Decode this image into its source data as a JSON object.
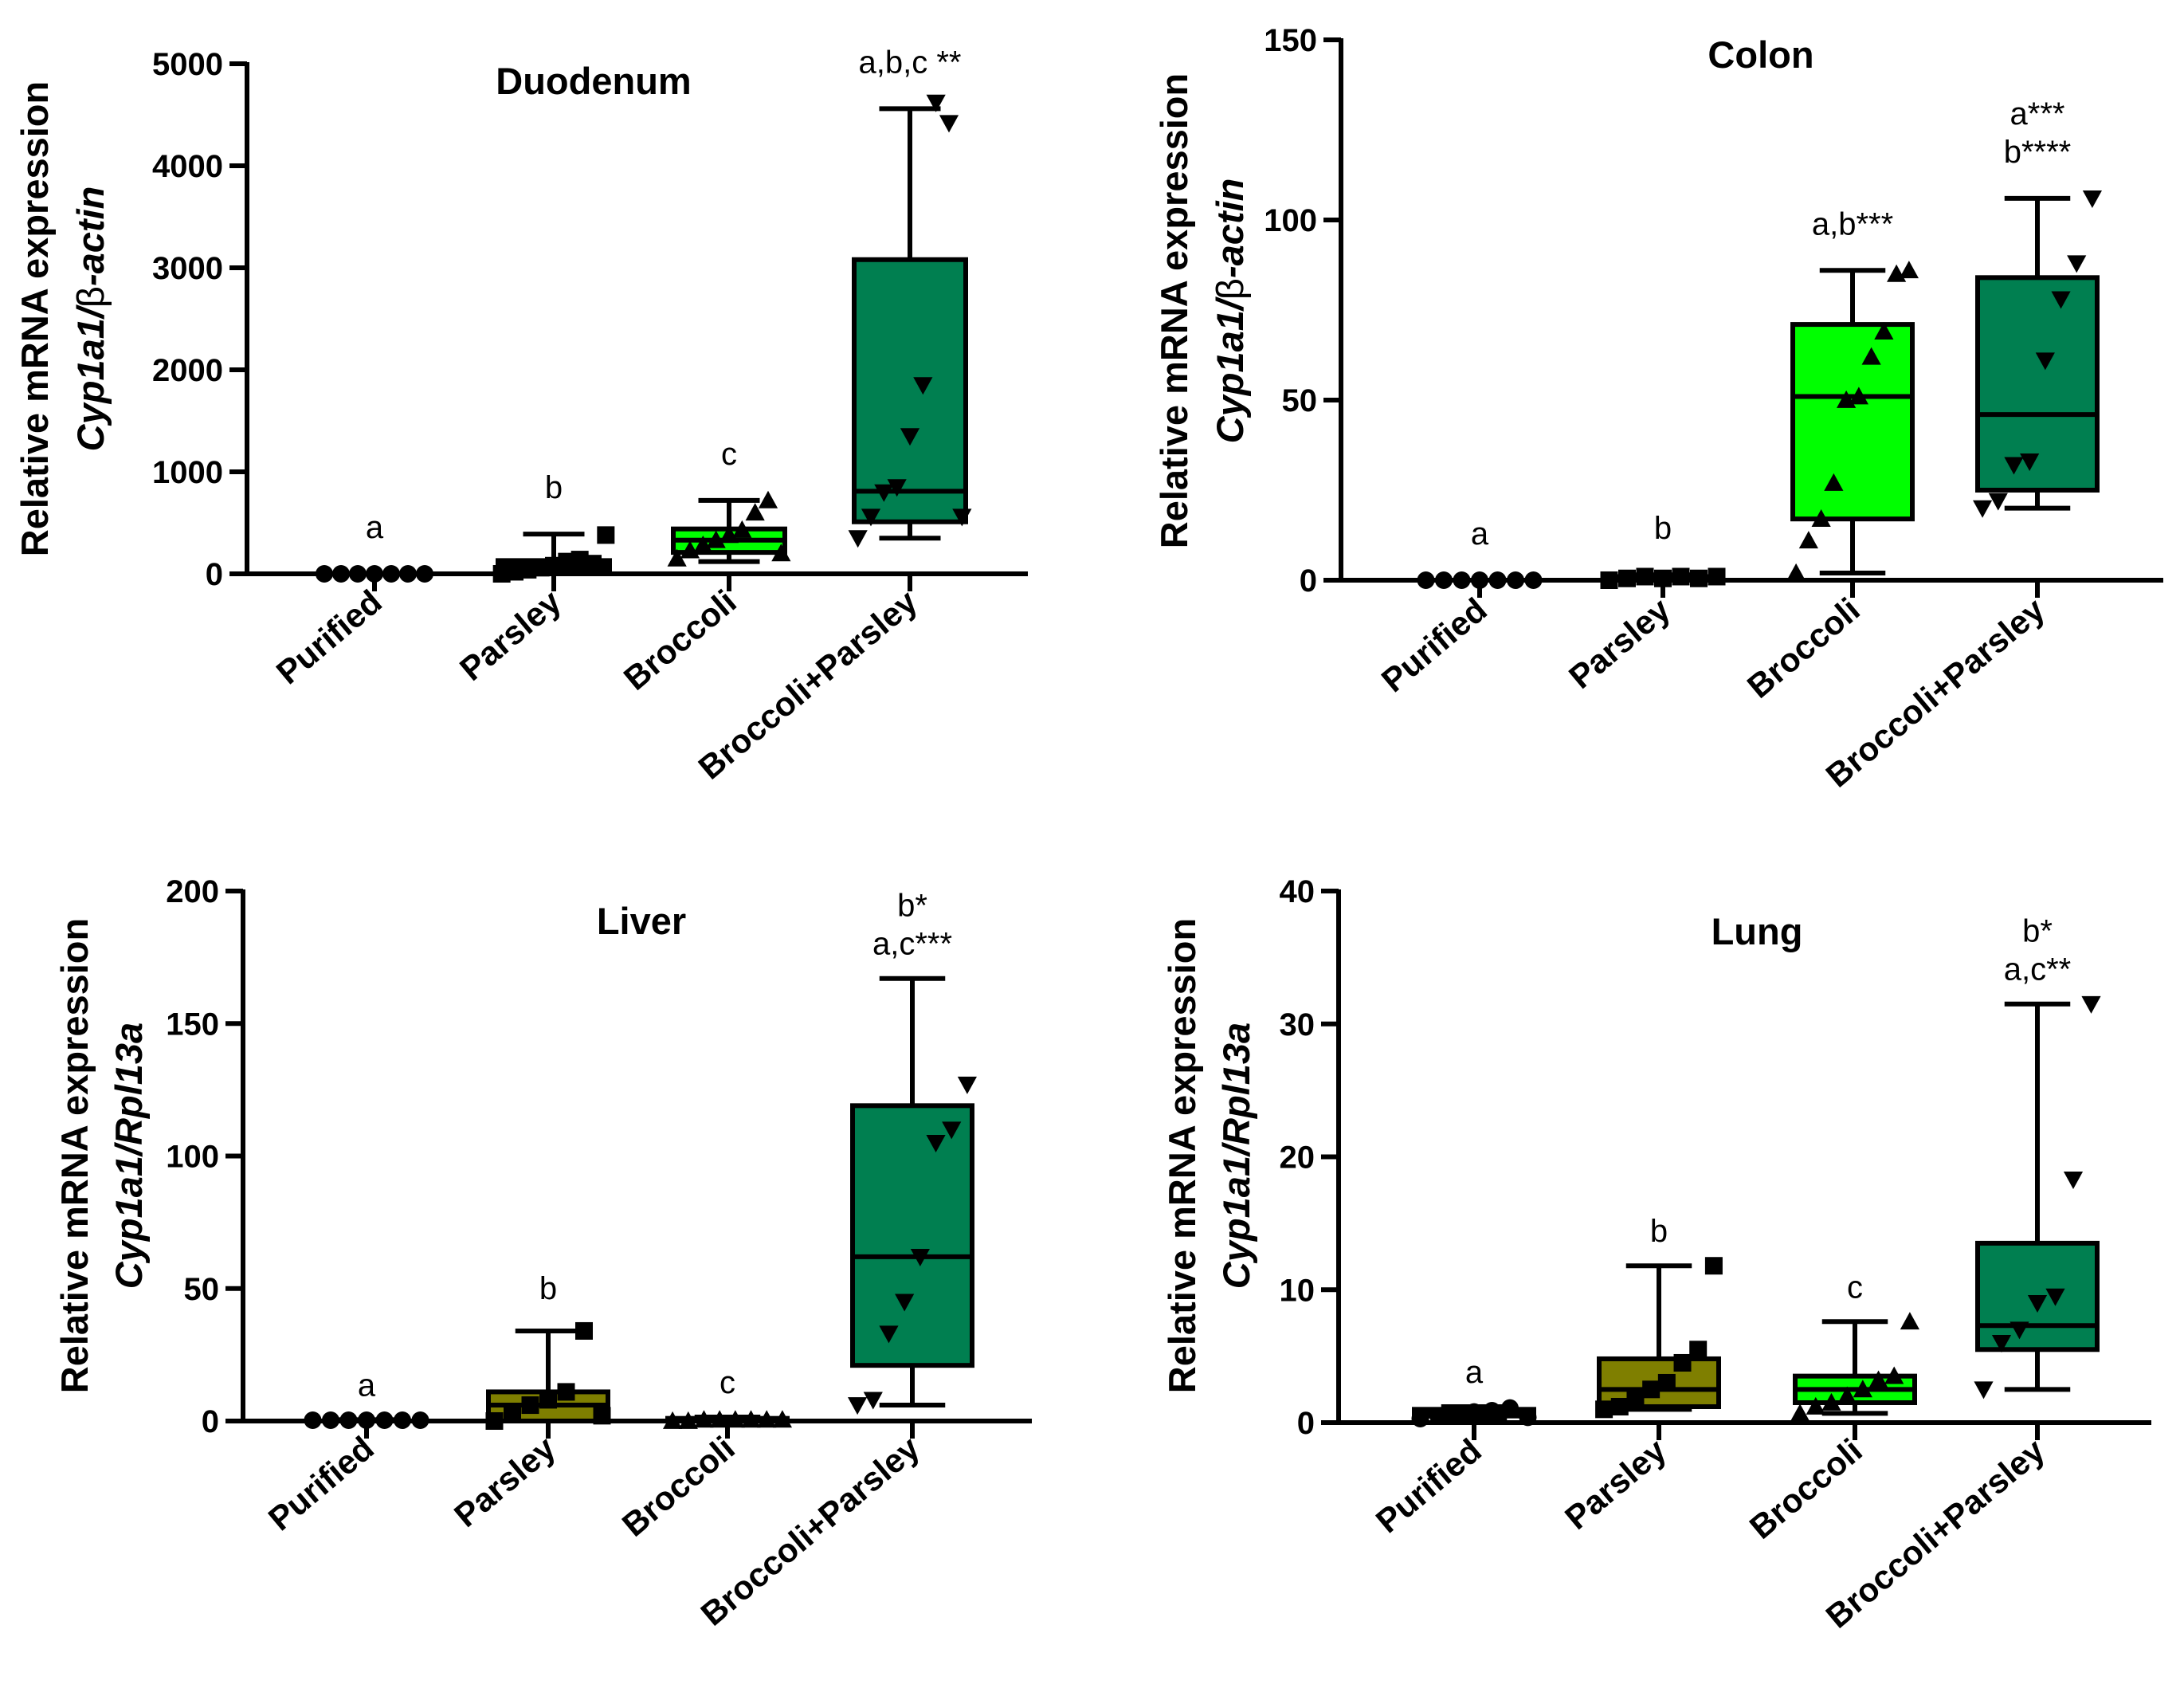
{
  "chart_data": [
    {
      "type": "box",
      "title": "Duodenum",
      "ylabel_line1": "Relative mRNA expression",
      "ylabel_gene": "Cyp1a1/",
      "ylabel_beta": "β",
      "ylabel_ref": "-actin",
      "ylim": [
        0,
        5000
      ],
      "yticks": [
        0,
        1000,
        2000,
        3000,
        4000,
        5000
      ],
      "ytick_labels": [
        "0",
        "1000",
        "2000",
        "3000",
        "4000",
        "5000"
      ],
      "categories": [
        "Purified",
        "Parsley",
        "Broccoli",
        "Broccoli+Parsley"
      ],
      "boxes": [
        {
          "min": 0,
          "q1": 0,
          "median": 0,
          "q3": 0,
          "max": 0,
          "color": "#000000",
          "marker": "circle",
          "label": "a",
          "points": [
            0,
            0,
            0,
            0,
            0,
            0,
            0
          ]
        },
        {
          "min": 0,
          "q1": 10,
          "median": 60,
          "q3": 130,
          "max": 390,
          "color": "#000000",
          "marker": "square",
          "label": "b",
          "points": [
            0,
            20,
            40,
            60,
            80,
            120,
            140,
            100,
            380
          ]
        },
        {
          "min": 120,
          "q1": 210,
          "median": 330,
          "q3": 440,
          "max": 720,
          "color": "#00ff00",
          "marker": "triangle-up",
          "label": "c",
          "points": [
            150,
            230,
            280,
            330,
            380,
            430,
            600,
            720,
            200
          ]
        },
        {
          "min": 350,
          "q1": 510,
          "median": 810,
          "q3": 3080,
          "max": 4560,
          "color": "#007f50",
          "marker": "triangle-down",
          "label": "a,b,c **",
          "points": [
            350,
            560,
            800,
            850,
            1350,
            1850,
            4620,
            4420,
            560
          ]
        }
      ]
    },
    {
      "type": "box",
      "title": "Colon",
      "ylabel_line1": "Relative mRNA expression",
      "ylabel_gene": "Cyp1a1/",
      "ylabel_beta": "β",
      "ylabel_ref": "-actin",
      "ylim": [
        0,
        150
      ],
      "yticks": [
        0,
        50,
        100,
        150
      ],
      "ytick_labels": [
        "0",
        "50",
        "100",
        "150"
      ],
      "categories": [
        "Purified",
        "Parsley",
        "Broccoli",
        "Broccoli+Parsley"
      ],
      "boxes": [
        {
          "min": 0,
          "q1": 0,
          "median": 0,
          "q3": 0,
          "max": 0,
          "color": "#000000",
          "marker": "circle",
          "label": "a",
          "points": [
            0,
            0,
            0,
            0,
            0,
            0,
            0
          ]
        },
        {
          "min": 0,
          "q1": 0,
          "median": 0.5,
          "q3": 1,
          "max": 1.5,
          "color": "#000000",
          "marker": "square",
          "label": "b",
          "points": [
            0,
            0.5,
            1,
            0.5,
            1,
            0.5,
            1
          ]
        },
        {
          "min": 2,
          "q1": 17,
          "median": 51,
          "q3": 71,
          "max": 86,
          "color": "#00ff00",
          "marker": "triangle-up",
          "label": "a,b***",
          "points": [
            2,
            11,
            17,
            27,
            50,
            51,
            62,
            69,
            85,
            86
          ]
        },
        {
          "min": 20,
          "q1": 25,
          "median": 46,
          "q3": 84,
          "max": 106,
          "color": "#007f50",
          "marker": "triangle-down",
          "label_line1": "a***",
          "label": "b****",
          "points": [
            20,
            22,
            32,
            33,
            61,
            78,
            88,
            106
          ]
        }
      ]
    },
    {
      "type": "box",
      "title": "Liver",
      "ylabel_line1": "Relative mRNA expression",
      "ylabel_gene": "Cyp1a1/Rpl13a",
      "ylim": [
        0,
        200
      ],
      "yticks": [
        0,
        50,
        100,
        150,
        200
      ],
      "ytick_labels": [
        "0",
        "50",
        "100",
        "150",
        "200"
      ],
      "categories": [
        "Purified",
        "Parsley",
        "Broccoli",
        "Broccoli+Parsley"
      ],
      "boxes": [
        {
          "min": 0,
          "q1": 0,
          "median": 0,
          "q3": 0,
          "max": 0.5,
          "color": "#000000",
          "marker": "circle",
          "label": "a",
          "points": [
            0.3,
            0.3,
            0.3,
            0.3,
            0.3,
            0.3,
            0.3
          ]
        },
        {
          "min": 0,
          "q1": 0,
          "median": 6,
          "q3": 11,
          "max": 34,
          "color": "#7f7f00",
          "marker": "square",
          "label": "b",
          "points": [
            0,
            3,
            6,
            8,
            11,
            34,
            2
          ]
        },
        {
          "min": 0,
          "q1": 0,
          "median": 0,
          "q3": 1,
          "max": 1.5,
          "color": "#00ff00",
          "marker": "triangle-up",
          "label": "c",
          "points": [
            0,
            0,
            0.5,
            0.5,
            0.5,
            0.5,
            0.5,
            0.5
          ]
        },
        {
          "min": 6,
          "q1": 21,
          "median": 62,
          "q3": 119,
          "max": 167,
          "color": "#007f50",
          "marker": "triangle-down",
          "label_line1": "b*",
          "label": "a,c***",
          "points": [
            6,
            8,
            33,
            45,
            62,
            105,
            110,
            127
          ]
        }
      ]
    },
    {
      "type": "box",
      "title": "Lung",
      "ylabel_line1": "Relative mRNA expression",
      "ylabel_gene": "Cyp1a1/Rpl13a",
      "ylim": [
        0,
        40
      ],
      "yticks": [
        0,
        10,
        20,
        30,
        40
      ],
      "ytick_labels": [
        "0",
        "10",
        "20",
        "30",
        "40"
      ],
      "categories": [
        "Purified",
        "Parsley",
        "Broccoli",
        "Broccoli+Parsley"
      ],
      "boxes": [
        {
          "min": 0.3,
          "q1": 0.5,
          "median": 0.8,
          "q3": 1.0,
          "max": 1.2,
          "color": "#000000",
          "marker": "circle",
          "label": "a",
          "points": [
            0.3,
            0.5,
            0.7,
            0.8,
            0.9,
            1.1,
            0.4
          ]
        },
        {
          "min": 1.0,
          "q1": 1.2,
          "median": 2.5,
          "q3": 4.8,
          "max": 11.8,
          "color": "#7f7f00",
          "marker": "square",
          "label": "b",
          "points": [
            1.0,
            1.2,
            2.0,
            2.5,
            3.0,
            4.5,
            5.5,
            11.8
          ]
        },
        {
          "min": 0.7,
          "q1": 1.5,
          "median": 2.5,
          "q3": 3.5,
          "max": 7.6,
          "color": "#00ff00",
          "marker": "triangle-up",
          "label": "c",
          "points": [
            0.7,
            1.2,
            1.5,
            2.0,
            2.5,
            3.2,
            3.5,
            7.6
          ]
        },
        {
          "min": 2.5,
          "q1": 5.5,
          "median": 7.3,
          "q3": 13.5,
          "max": 31.5,
          "color": "#007f50",
          "marker": "triangle-down",
          "label_line1": "b*",
          "label": "a,c**",
          "points": [
            2.5,
            6.0,
            7.0,
            9.0,
            9.5,
            18.3,
            31.5
          ]
        }
      ]
    }
  ]
}
